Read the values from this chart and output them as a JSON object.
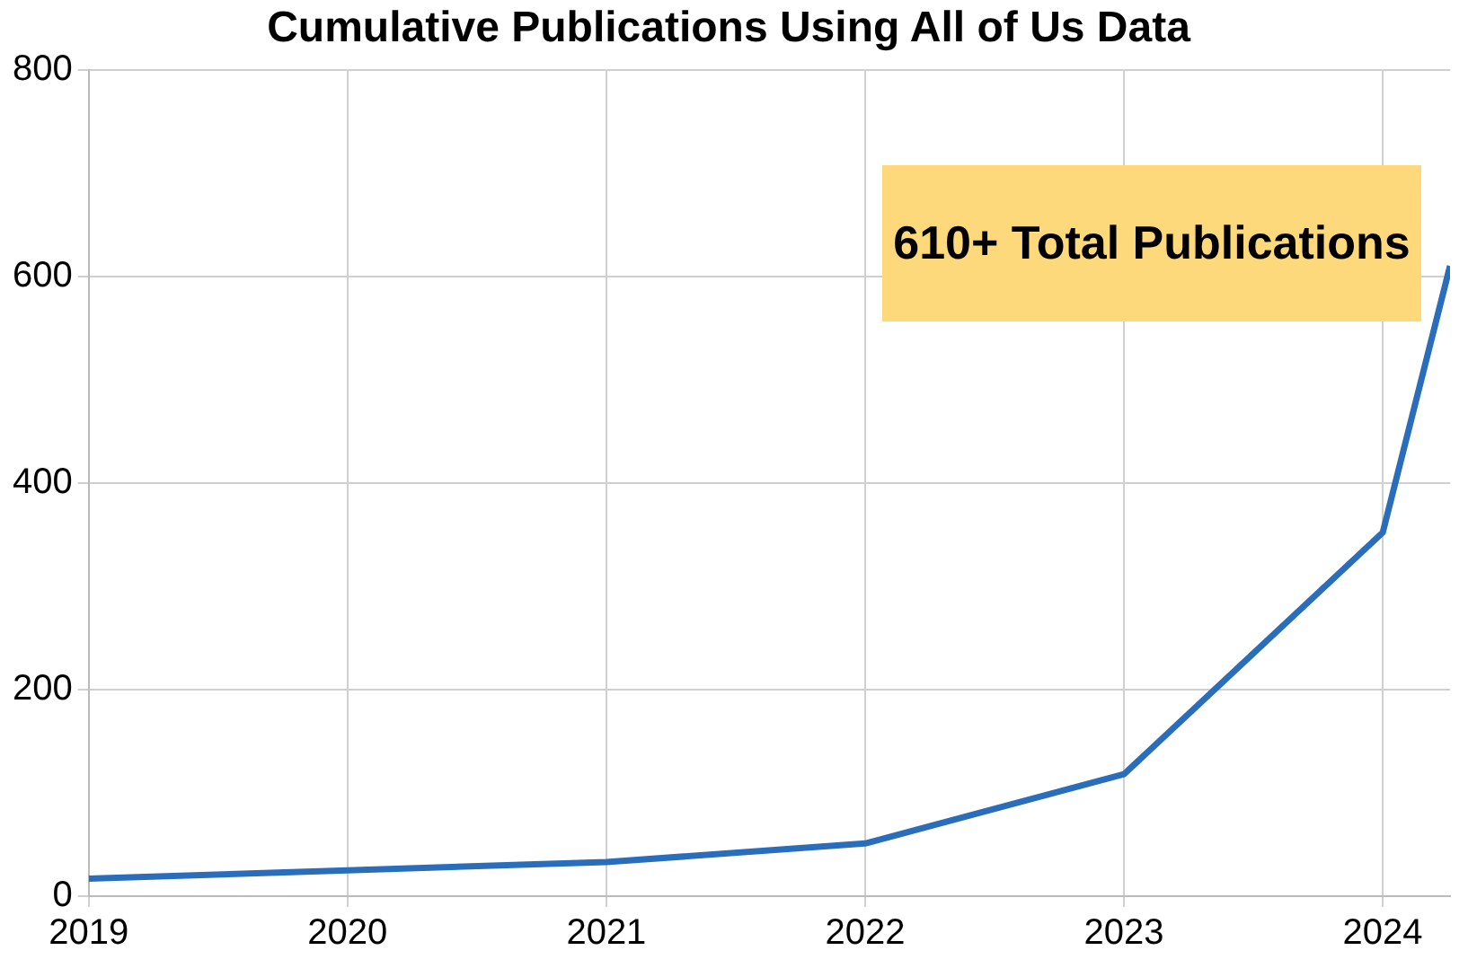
{
  "chart_data": {
    "type": "line",
    "title": "Cumulative Publications Using All of Us Data",
    "x": [
      2019,
      2020,
      2021,
      2022,
      2023,
      2024,
      2024.26
    ],
    "series": [
      {
        "color": "#2a6ebb",
        "values": [
          17,
          25,
          33,
          51,
          118,
          352,
          610
        ]
      }
    ],
    "xlim": [
      2019,
      2024.26
    ],
    "xticks": [
      2019,
      2020,
      2021,
      2022,
      2023,
      2024
    ],
    "ylim": [
      0,
      800
    ],
    "yticks": [
      0,
      200,
      400,
      600,
      800
    ],
    "grid": true,
    "legend": false,
    "marker": "none",
    "line_style": "solid",
    "annotations": [
      "610+ Total Publications"
    ]
  }
}
